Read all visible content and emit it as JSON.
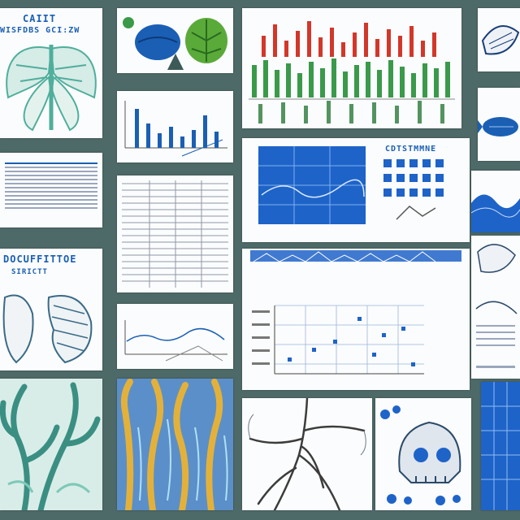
{
  "collage": {
    "palette": {
      "background": "#4e6a68",
      "paper": "#fbfcfd",
      "blue": "#1a5fb4",
      "teal": "#4fae9c",
      "green": "#3a9a4a",
      "red": "#d2372a",
      "yellow": "#e3b13a"
    },
    "panel_titles": {
      "insect": "CAIIT",
      "insect_sub": "WISFDBS GCI:ZW",
      "sea_creatures": "DOCUFFITTOE",
      "sea_creatures_sub": "SIRICTT",
      "blue_grid": "CDTSTMMNE"
    },
    "icons": [
      "insect-illustration-icon",
      "leaf-icon",
      "shell-icon",
      "coral-icon",
      "tree-roots-icon",
      "skull-icon",
      "fish-icon"
    ]
  }
}
